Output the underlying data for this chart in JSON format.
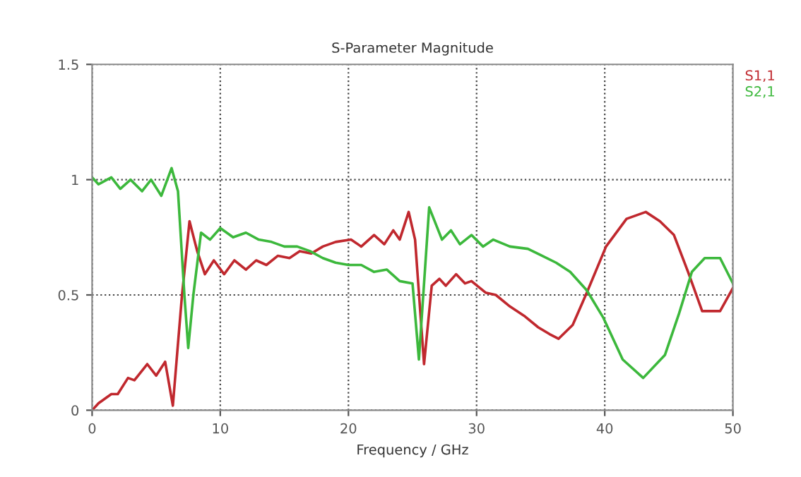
{
  "chart_data": {
    "type": "line",
    "title": "S-Parameter Magnitude",
    "xlabel": "Frequency / GHz",
    "xlim": [
      0,
      50
    ],
    "xticks": [
      0,
      10,
      20,
      30,
      40,
      50
    ],
    "ylim": [
      0,
      1.5
    ],
    "yticks": [
      0,
      0.5,
      1,
      1.5
    ],
    "grid": true,
    "legend": "top right",
    "line_style": "solid",
    "series": [
      {
        "name": "S1,1",
        "color": "#c0282e",
        "x": [
          0,
          0.5,
          1.5,
          2,
          2.8,
          3.3,
          4.3,
          5,
          5.7,
          6.3,
          7,
          7.6,
          8.2,
          8.8,
          9.5,
          10.3,
          11.1,
          12,
          12.8,
          13.6,
          14.5,
          15.4,
          16.2,
          17.1,
          18,
          19,
          20.2,
          21,
          22,
          22.8,
          23.5,
          24,
          24.7,
          25.2,
          25.9,
          26.5,
          27.1,
          27.6,
          28.4,
          29.1,
          29.6,
          30.7,
          31.5,
          32.6,
          33.7,
          34.8,
          35.7,
          36.4,
          37.5,
          38.6,
          40.1,
          41.7,
          43.2,
          44.3,
          45.4,
          46.5,
          47.6,
          49,
          50
        ],
        "values": [
          0,
          0.03,
          0.07,
          0.07,
          0.14,
          0.13,
          0.2,
          0.15,
          0.21,
          0.02,
          0.49,
          0.82,
          0.69,
          0.59,
          0.65,
          0.59,
          0.65,
          0.61,
          0.65,
          0.63,
          0.67,
          0.66,
          0.69,
          0.68,
          0.71,
          0.73,
          0.74,
          0.71,
          0.76,
          0.72,
          0.78,
          0.74,
          0.86,
          0.74,
          0.2,
          0.54,
          0.57,
          0.54,
          0.59,
          0.55,
          0.56,
          0.51,
          0.5,
          0.45,
          0.41,
          0.36,
          0.33,
          0.31,
          0.37,
          0.51,
          0.71,
          0.83,
          0.86,
          0.82,
          0.76,
          0.6,
          0.43,
          0.43,
          0.53
        ]
      },
      {
        "name": "S2,1",
        "color": "#3cb83c",
        "x": [
          0,
          0.5,
          1.5,
          2.2,
          3,
          3.9,
          4.6,
          5.4,
          6.2,
          6.7,
          7.2,
          7.5,
          7.9,
          8.5,
          9.2,
          10,
          11,
          12,
          13,
          14,
          15,
          16,
          17,
          18,
          19,
          20,
          21,
          22,
          23,
          24,
          25,
          25.5,
          26.3,
          27.3,
          28,
          28.7,
          29.6,
          30.5,
          31.3,
          32.6,
          34,
          35.1,
          36.2,
          37.3,
          38.6,
          39.9,
          41.4,
          43,
          44.7,
          45.8,
          46.8,
          47.8,
          49,
          50
        ],
        "values": [
          1.01,
          0.98,
          1.01,
          0.96,
          1.0,
          0.95,
          1.0,
          0.93,
          1.05,
          0.95,
          0.5,
          0.27,
          0.5,
          0.77,
          0.74,
          0.79,
          0.75,
          0.77,
          0.74,
          0.73,
          0.71,
          0.71,
          0.69,
          0.66,
          0.64,
          0.63,
          0.63,
          0.6,
          0.61,
          0.56,
          0.55,
          0.22,
          0.88,
          0.74,
          0.78,
          0.72,
          0.76,
          0.71,
          0.74,
          0.71,
          0.7,
          0.67,
          0.64,
          0.6,
          0.52,
          0.4,
          0.22,
          0.14,
          0.24,
          0.42,
          0.6,
          0.66,
          0.66,
          0.55
        ]
      }
    ]
  }
}
